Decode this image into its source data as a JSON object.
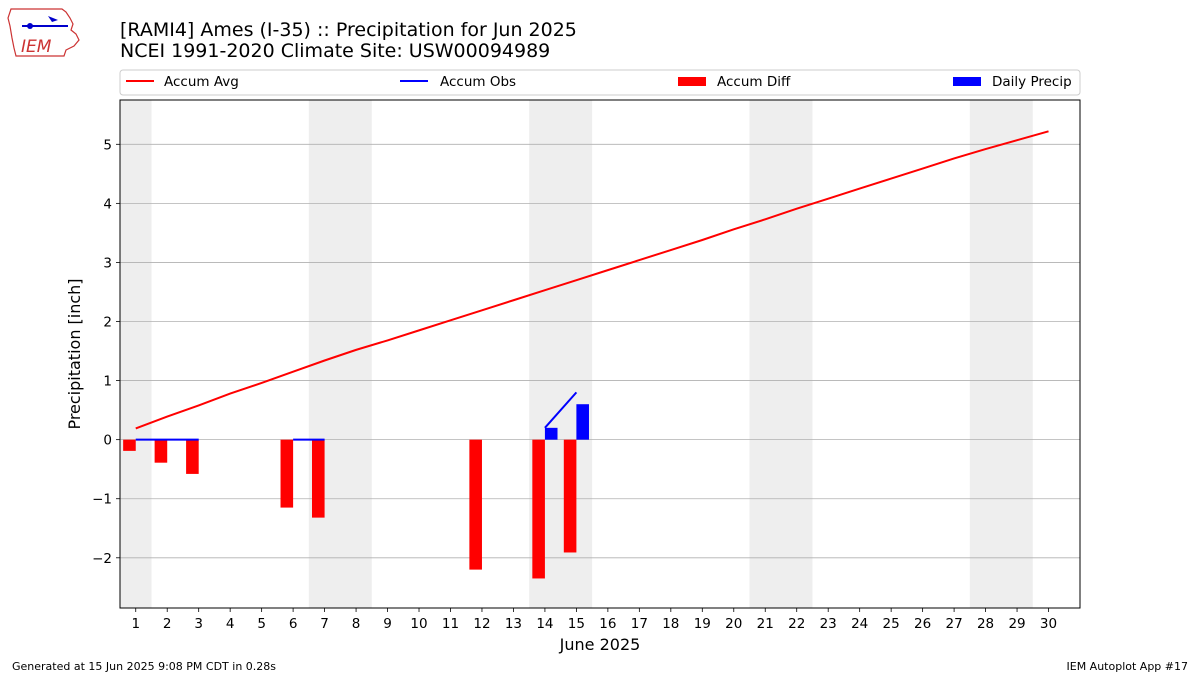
{
  "header": {
    "title_line1": "[RAMI4] Ames (I-35) :: Precipitation for Jun 2025",
    "title_line2": "NCEI 1991-2020 Climate Site: USW00094989",
    "logo_text": "IEM"
  },
  "footer": {
    "left": "Generated at 15 Jun 2025 9:08 PM CDT in 0.28s",
    "right": "IEM Autoplot App #17"
  },
  "colors": {
    "accum_avg": "#ff0000",
    "accum_obs": "#0000ff",
    "accum_diff": "#ff0000",
    "daily_precip": "#0000ff",
    "weekend_band": "#eeeeee",
    "grid": "#b0b0b0"
  },
  "chart_data": {
    "type": "bar",
    "xlabel": "June 2025",
    "ylabel": "Precipitation [inch]",
    "xlim": [
      0.5,
      31.0
    ],
    "ylim": [
      -2.85,
      5.75
    ],
    "yticks": [
      -2,
      -1,
      0,
      1,
      2,
      3,
      4,
      5
    ],
    "ytick_labels": [
      "−2",
      "−1",
      "0",
      "1",
      "2",
      "3",
      "4",
      "5"
    ],
    "xticks": [
      1,
      2,
      3,
      4,
      5,
      6,
      7,
      8,
      9,
      10,
      11,
      12,
      13,
      14,
      15,
      16,
      17,
      18,
      19,
      20,
      21,
      22,
      23,
      24,
      25,
      26,
      27,
      28,
      29,
      30
    ],
    "grid": "horizontal",
    "weekend_bands": [
      [
        0.5,
        1.5
      ],
      [
        6.5,
        8.5
      ],
      [
        13.5,
        15.5
      ],
      [
        20.5,
        22.5
      ],
      [
        27.5,
        29.5
      ]
    ],
    "legend": {
      "placement": "top",
      "entries": [
        {
          "label": "Accum Avg",
          "kind": "line",
          "color_key": "accum_avg"
        },
        {
          "label": "Accum Obs",
          "kind": "line",
          "color_key": "accum_obs"
        },
        {
          "label": "Accum Diff",
          "kind": "bar",
          "color_key": "accum_diff"
        },
        {
          "label": "Daily Precip",
          "kind": "bar",
          "color_key": "daily_precip"
        }
      ]
    },
    "series": [
      {
        "name": "Accum Avg",
        "kind": "line",
        "x": [
          1,
          2,
          3,
          4,
          5,
          6,
          7,
          8,
          9,
          10,
          11,
          12,
          13,
          14,
          15,
          16,
          17,
          18,
          19,
          20,
          21,
          22,
          23,
          24,
          25,
          26,
          27,
          28,
          29,
          30
        ],
        "values": [
          0.19,
          0.39,
          0.58,
          0.78,
          0.96,
          1.15,
          1.34,
          1.52,
          1.68,
          1.85,
          2.02,
          2.19,
          2.36,
          2.53,
          2.7,
          2.87,
          3.04,
          3.21,
          3.38,
          3.56,
          3.73,
          3.91,
          4.08,
          4.25,
          4.42,
          4.59,
          4.76,
          4.92,
          5.07,
          5.22
        ]
      },
      {
        "name": "Accum Obs",
        "kind": "line",
        "x": [
          1,
          2,
          3,
          6,
          7,
          14,
          15
        ],
        "values": [
          0,
          0,
          0,
          0,
          0,
          0.2,
          0.8
        ],
        "segments": [
          [
            1,
            3
          ],
          [
            6,
            7
          ],
          [
            14,
            15
          ]
        ]
      },
      {
        "name": "Accum Diff",
        "kind": "bar",
        "x": [
          1,
          2,
          3,
          6,
          7,
          12,
          14,
          15
        ],
        "values": [
          -0.19,
          -0.39,
          -0.58,
          -1.15,
          -1.32,
          -2.2,
          -2.35,
          -1.91
        ]
      },
      {
        "name": "Daily Precip",
        "kind": "bar",
        "x": [
          14,
          15
        ],
        "values": [
          0.2,
          0.6
        ]
      }
    ]
  }
}
